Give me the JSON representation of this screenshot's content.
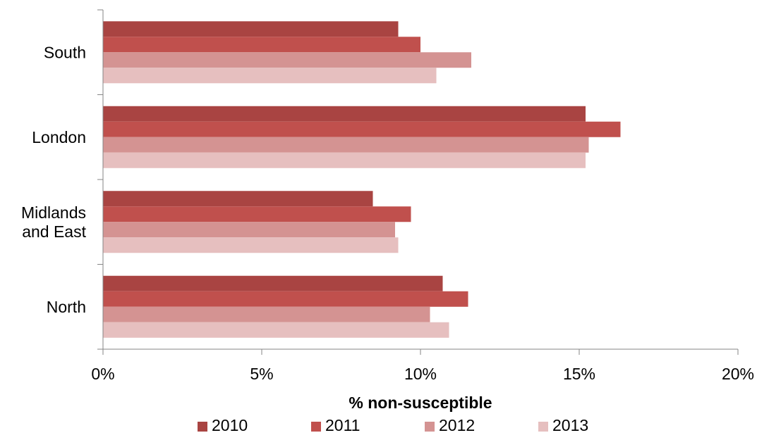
{
  "chart_data": {
    "type": "bar",
    "orientation": "horizontal",
    "categories": [
      "South",
      "London",
      "Midlands and East",
      "North"
    ],
    "category_label_lines": [
      [
        "South"
      ],
      [
        "London"
      ],
      [
        "Midlands",
        "and East"
      ],
      [
        "North"
      ]
    ],
    "series": [
      {
        "name": "2010",
        "color": "#a94442",
        "values": [
          9.3,
          15.2,
          8.5,
          10.7
        ]
      },
      {
        "name": "2011",
        "color": "#c0504d",
        "values": [
          10.0,
          16.3,
          9.7,
          11.5
        ]
      },
      {
        "name": "2012",
        "color": "#d49392",
        "values": [
          11.6,
          15.3,
          9.2,
          10.3
        ]
      },
      {
        "name": "2013",
        "color": "#e6bfbf",
        "values": [
          10.5,
          15.2,
          9.3,
          10.9
        ]
      }
    ],
    "xlabel": "% non-susceptible",
    "xlim": [
      0,
      20
    ],
    "xticks": [
      0,
      5,
      10,
      15,
      20
    ],
    "xtick_labels": [
      "0%",
      "5%",
      "10%",
      "15%",
      "20%"
    ],
    "grid": false,
    "legend_position": "bottom"
  }
}
